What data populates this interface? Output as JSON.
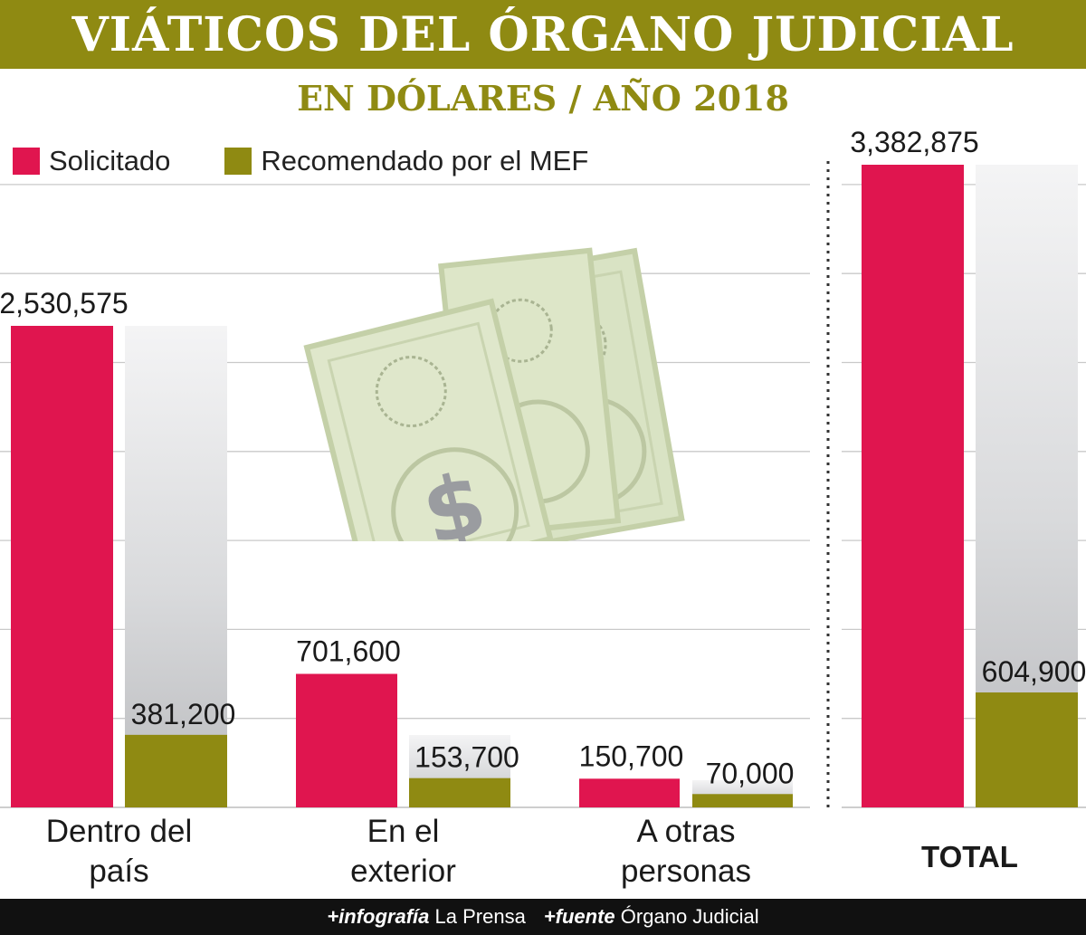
{
  "header": {
    "title": "VIÁTICOS DEL ÓRGANO JUDICIAL",
    "subtitle": "EN DÓLARES / AÑO 2018"
  },
  "legend": {
    "position": "top-left",
    "items": [
      {
        "label": "Solicitado",
        "color": "#e0154f"
      },
      {
        "label": "Recomendado por el MEF",
        "color": "#8f8a12"
      }
    ]
  },
  "footer": {
    "prefix1": "+infografía",
    "text1": "La Prensa",
    "prefix2": "+fuente",
    "text2": "Órgano Judicial"
  },
  "chart_data": {
    "type": "bar",
    "title": "VIÁTICOS DEL ÓRGANO JUDICIAL",
    "subtitle": "EN DÓLARES / AÑO 2018",
    "xlabel": "",
    "ylabel": "",
    "grid": true,
    "legend_placement": "top-left",
    "categories": [
      "Dentro del\npaís",
      "En el\nexterior",
      "A otras\npersonas",
      "TOTAL"
    ],
    "series": [
      {
        "name": "Solicitado",
        "color": "#e0154f",
        "values": [
          2530575,
          701600,
          150700,
          3382875
        ],
        "labels": [
          "2,530,575",
          "701,600",
          "150,700",
          "3,382,875"
        ]
      },
      {
        "name": "Recomendado por el MEF",
        "color": "#8f8a12",
        "values": [
          381200,
          153700,
          70000,
          604900
        ],
        "labels": [
          "381,200",
          "153,700",
          "70,000",
          "604,900"
        ]
      }
    ]
  }
}
